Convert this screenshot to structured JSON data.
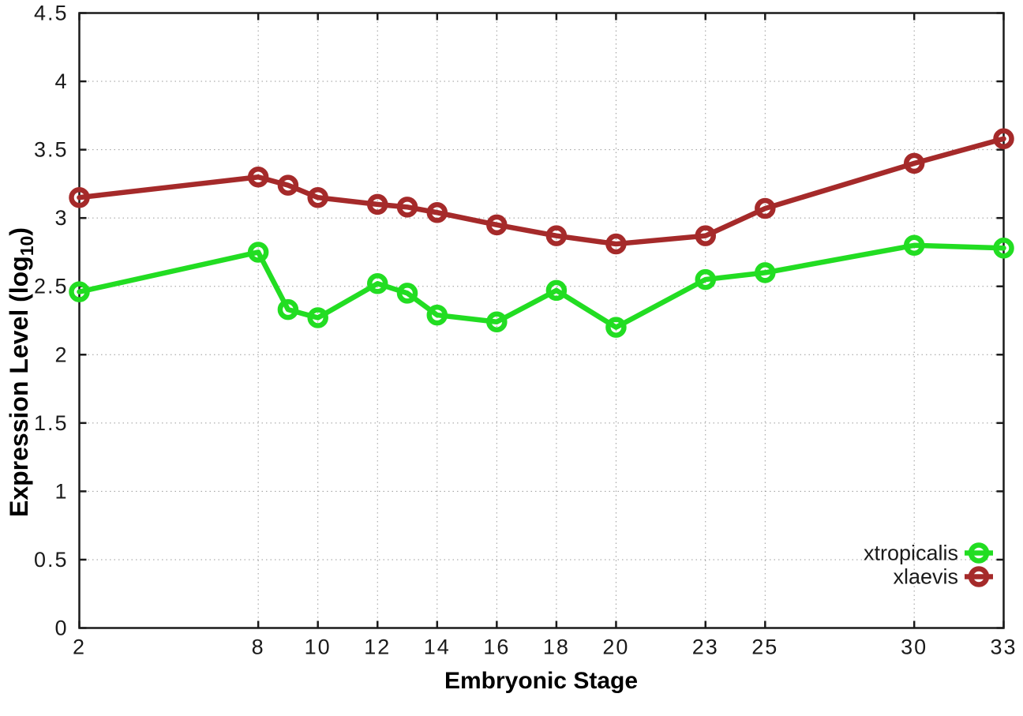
{
  "figure": {
    "ylabel_parts": {
      "base": "Expression Level (log",
      "sub": "10",
      "close": ")"
    }
  },
  "colors": {
    "background": "#ffffff",
    "grid": "#9a9a9a",
    "axis": "#1a1a1a",
    "text": "#1a1a1a",
    "xtropicalis": "#22dd22",
    "xlaevis": "#a52a2a"
  },
  "chart_data": {
    "type": "line",
    "title": "",
    "xlabel": "Embryonic Stage",
    "ylabel": "Expression Level (log10)",
    "x": [
      2,
      8,
      9,
      10,
      12,
      13,
      14,
      16,
      18,
      20,
      23,
      25,
      30,
      33
    ],
    "series": [
      {
        "name": "xtropicalis",
        "color": "#22dd22",
        "values": [
          2.46,
          2.75,
          2.33,
          2.27,
          2.52,
          2.45,
          2.29,
          2.24,
          2.47,
          2.2,
          2.55,
          2.6,
          2.8,
          2.78
        ]
      },
      {
        "name": "xlaevis",
        "color": "#a52a2a",
        "values": [
          3.15,
          3.3,
          3.24,
          3.15,
          3.1,
          3.08,
          3.04,
          2.95,
          2.87,
          2.81,
          2.87,
          3.07,
          3.4,
          3.58
        ]
      }
    ],
    "xticks": [
      2,
      8,
      10,
      12,
      14,
      16,
      18,
      20,
      23,
      25,
      30,
      33
    ],
    "yticks": [
      0,
      0.5,
      1,
      1.5,
      2,
      2.5,
      3,
      3.5,
      4,
      4.5
    ],
    "xlim": [
      2,
      33
    ],
    "ylim": [
      0,
      4.5
    ],
    "grid": true,
    "marker": "open-circle",
    "legend_position": "inside-bottom-right"
  }
}
